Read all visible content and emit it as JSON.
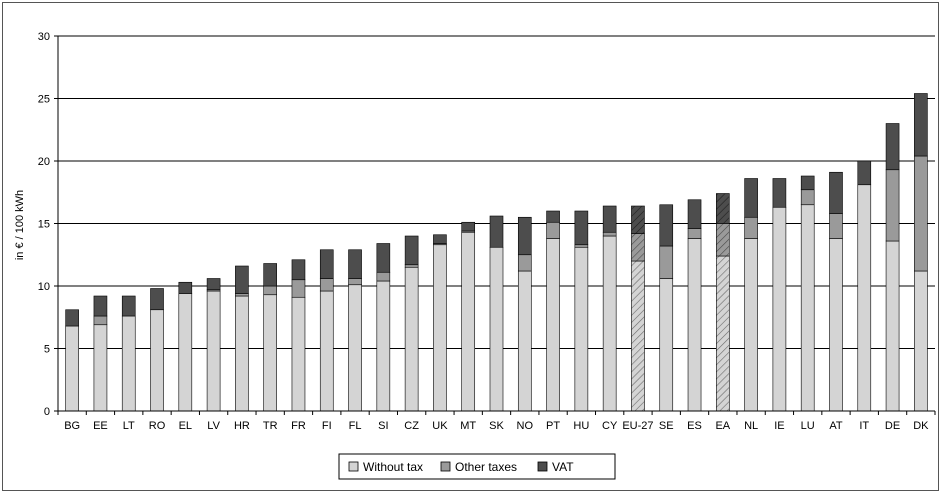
{
  "chart_data": {
    "type": "bar",
    "stacked": true,
    "title": "",
    "xlabel": "",
    "ylabel": "in € / 100 kWh",
    "ylim": [
      0,
      30
    ],
    "yticks": [
      0,
      5,
      10,
      15,
      20,
      25,
      30
    ],
    "grid": true,
    "legend_position": "bottom",
    "categories": [
      "BG",
      "EE",
      "LT",
      "RO",
      "EL",
      "LV",
      "HR",
      "TR",
      "FR",
      "FI",
      "FL",
      "SI",
      "CZ",
      "UK",
      "MT",
      "SK",
      "NO",
      "PT",
      "HU",
      "CY",
      "EU-27",
      "SE",
      "ES",
      "EA",
      "NL",
      "IE",
      "LU",
      "AT",
      "IT",
      "DE",
      "DK"
    ],
    "hatched_categories": [
      "EU-27",
      "EA"
    ],
    "series": [
      {
        "name": "Without tax",
        "color": "#d4d4d4",
        "values": [
          6.8,
          6.9,
          7.6,
          8.1,
          9.4,
          9.6,
          9.2,
          9.3,
          9.1,
          9.6,
          10.1,
          10.4,
          11.5,
          13.3,
          14.3,
          13.1,
          11.2,
          13.8,
          13.1,
          14.0,
          12.0,
          10.6,
          13.8,
          12.4,
          13.8,
          16.3,
          16.5,
          13.8,
          18.1,
          13.6,
          11.2
        ]
      },
      {
        "name": "Other taxes",
        "color": "#9a9a9a",
        "values": [
          0.0,
          0.7,
          0.0,
          0.0,
          0.0,
          0.1,
          0.2,
          0.7,
          1.4,
          1.0,
          0.5,
          0.7,
          0.2,
          0.1,
          0.1,
          0.0,
          1.3,
          1.3,
          0.2,
          0.3,
          2.2,
          2.6,
          0.8,
          2.6,
          1.7,
          0.0,
          1.2,
          2.0,
          0.0,
          5.7,
          9.2
        ]
      },
      {
        "name": "VAT",
        "color": "#4d4d4d",
        "values": [
          1.3,
          1.6,
          1.6,
          1.7,
          0.9,
          0.9,
          2.2,
          1.8,
          1.6,
          2.3,
          2.3,
          2.3,
          2.3,
          0.7,
          0.7,
          2.5,
          3.0,
          0.9,
          2.7,
          2.1,
          2.2,
          3.3,
          2.3,
          2.4,
          3.1,
          2.3,
          1.1,
          3.3,
          1.9,
          3.7,
          5.0
        ]
      }
    ]
  }
}
